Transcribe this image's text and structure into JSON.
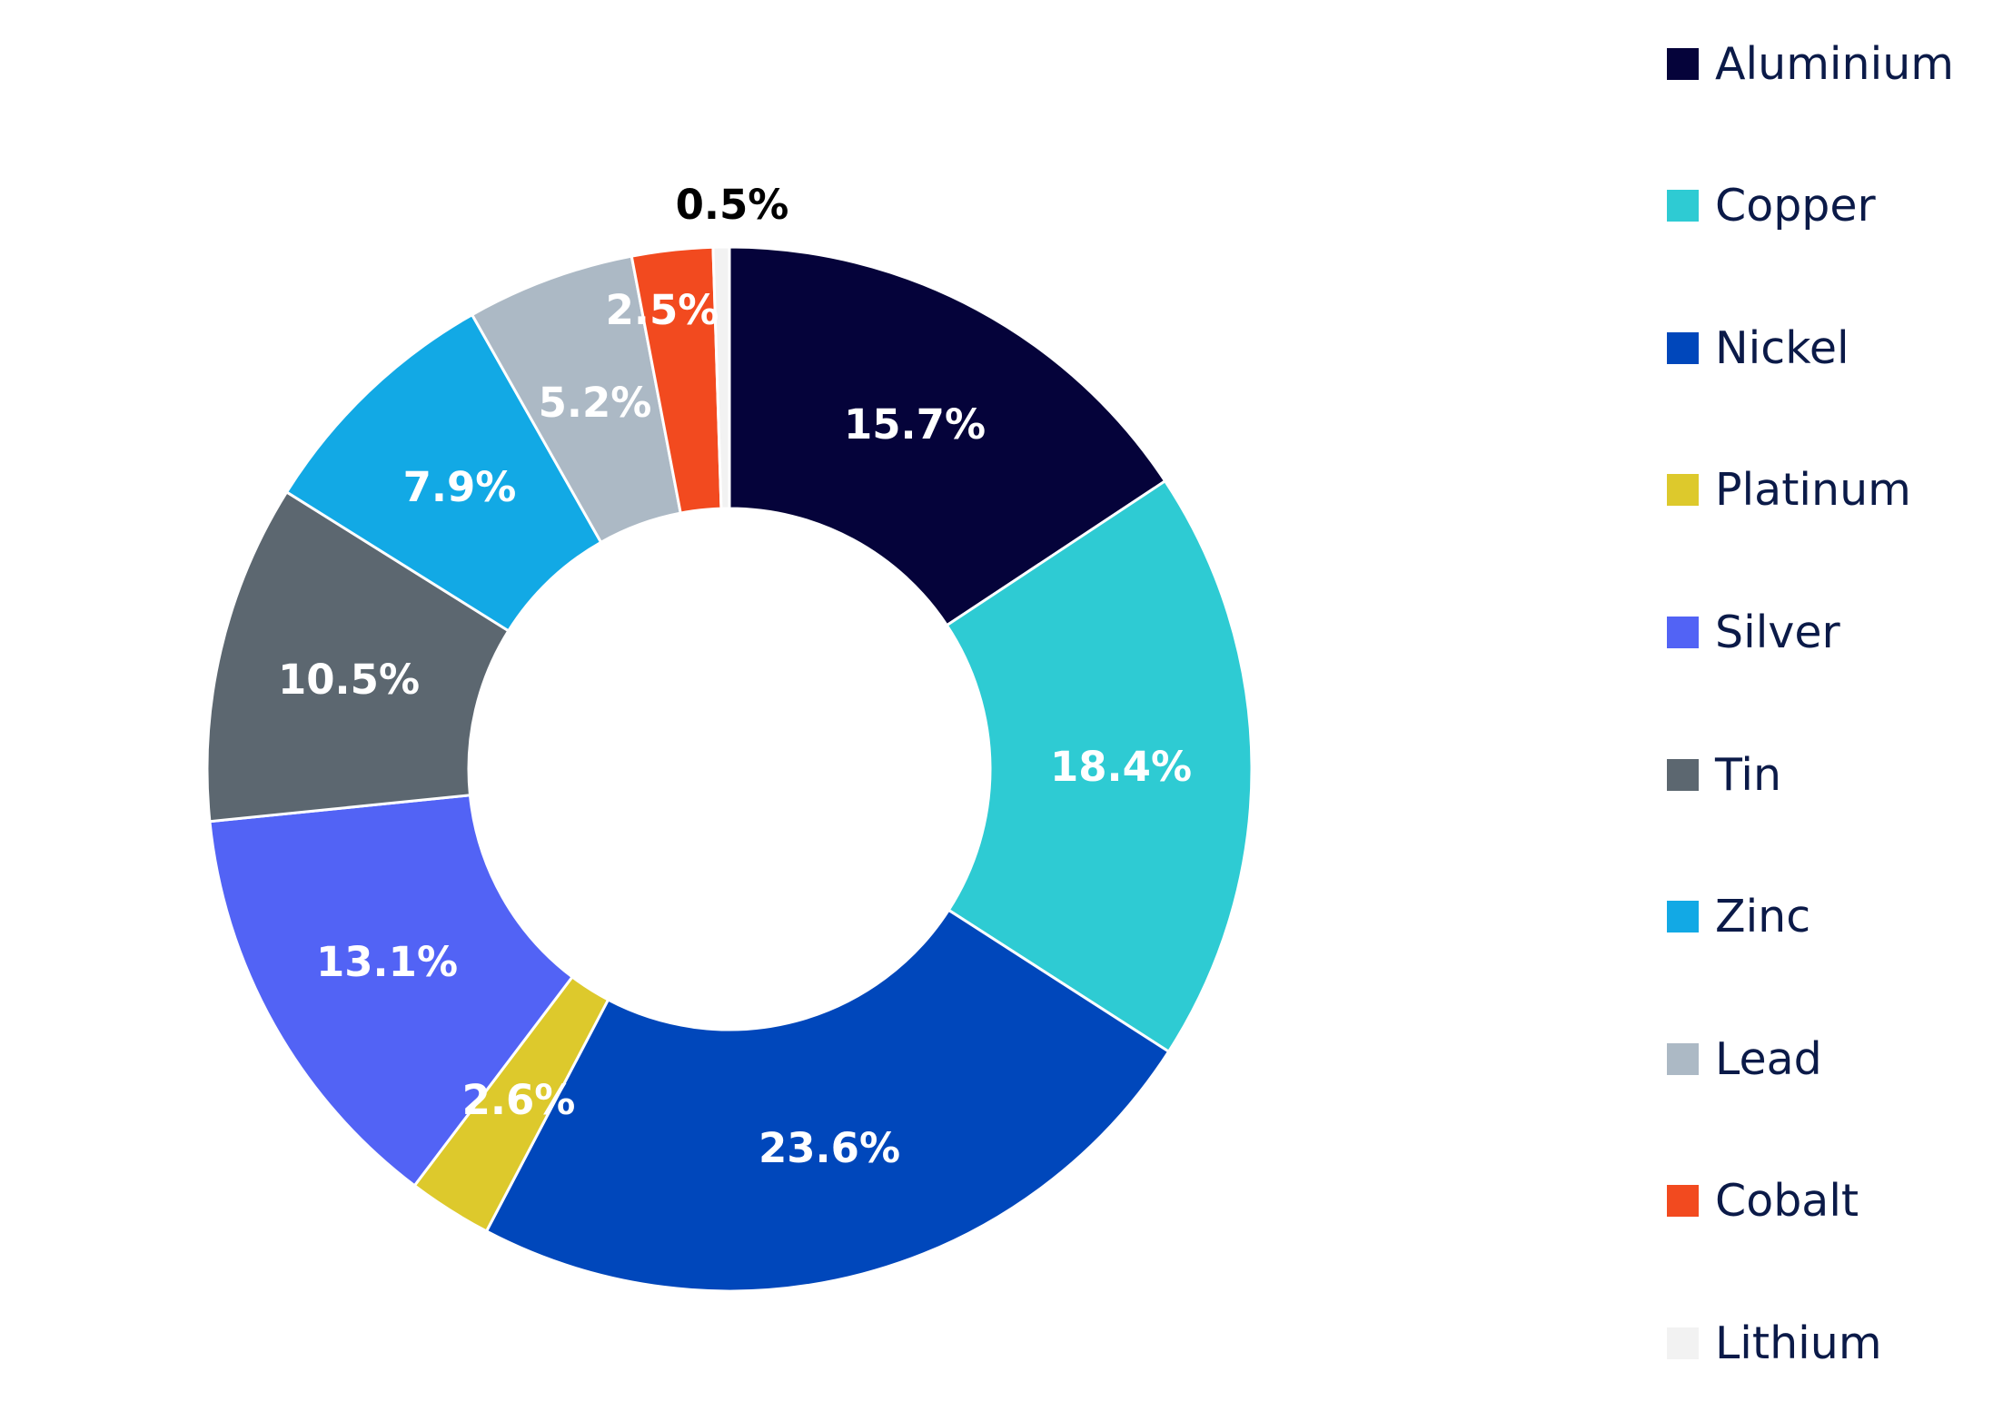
{
  "chart_data": {
    "type": "pie",
    "donut": true,
    "legend_position": "right",
    "slices": [
      {
        "name": "Aluminium",
        "value": 15.7,
        "label": "15.7%",
        "color": "#05033a",
        "label_color": "#ffffff"
      },
      {
        "name": "Copper",
        "value": 18.4,
        "label": "18.4%",
        "color": "#2ecbd3",
        "label_color": "#ffffff"
      },
      {
        "name": "Nickel",
        "value": 23.6,
        "label": "23.6%",
        "color": "#0047bb",
        "label_color": "#ffffff"
      },
      {
        "name": "Platinum",
        "value": 2.6,
        "label": "2.6%",
        "color": "#ddc92c",
        "label_color": "#ffffff"
      },
      {
        "name": "Silver",
        "value": 13.1,
        "label": "13.1%",
        "color": "#5263f5",
        "label_color": "#ffffff"
      },
      {
        "name": "Tin",
        "value": 10.5,
        "label": "10.5%",
        "color": "#5c6770",
        "label_color": "#ffffff"
      },
      {
        "name": "Zinc",
        "value": 7.9,
        "label": "7.9%",
        "color": "#12a9e5",
        "label_color": "#ffffff"
      },
      {
        "name": "Lead",
        "value": 5.2,
        "label": "5.2%",
        "color": "#acb9c5",
        "label_color": "#ffffff"
      },
      {
        "name": "Cobalt",
        "value": 2.5,
        "label": "2.5%",
        "color": "#f24a1f",
        "label_color": "#ffffff"
      },
      {
        "name": "Lithium",
        "value": 0.5,
        "label": "0.5%",
        "color": "#f2f2f2",
        "label_color": "#000000"
      }
    ]
  }
}
